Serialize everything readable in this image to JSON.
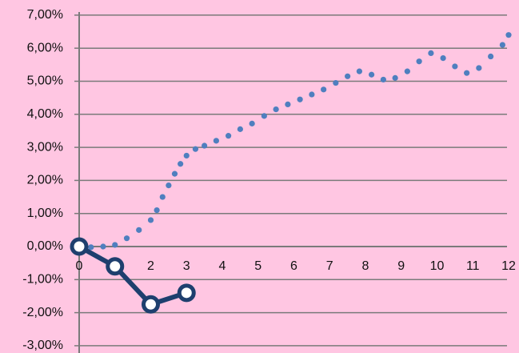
{
  "chart_data": {
    "type": "line",
    "x_ticks": [
      "0",
      "1",
      "2",
      "3",
      "4",
      "5",
      "6",
      "7",
      "8",
      "9",
      "10",
      "11",
      "12"
    ],
    "y_ticks": [
      "7,00%",
      "6,00%",
      "5,00%",
      "4,00%",
      "3,00%",
      "2,00%",
      "1,00%",
      "0,00%",
      "-1,00%",
      "-2,00%",
      "-3,00%"
    ],
    "xlim": [
      0,
      12
    ],
    "ylim": [
      -3,
      7
    ],
    "grid": "horizontal",
    "legend": "none",
    "series": [
      {
        "style": "dotted",
        "color": "#4f7fbf",
        "x": [
          0,
          0.33,
          0.67,
          1,
          1.33,
          1.67,
          2,
          2.17,
          2.33,
          2.5,
          2.67,
          2.83,
          3,
          3.25,
          3.5,
          3.83,
          4.17,
          4.5,
          4.83,
          5.17,
          5.5,
          5.83,
          6.17,
          6.5,
          6.83,
          7.17,
          7.5,
          7.83,
          8.17,
          8.5,
          8.83,
          9.17,
          9.5,
          9.83,
          10.17,
          10.5,
          10.83,
          11.17,
          11.5,
          11.83,
          12
        ],
        "y": [
          0.0,
          -0.02,
          0.0,
          0.05,
          0.25,
          0.5,
          0.8,
          1.1,
          1.5,
          1.85,
          2.2,
          2.5,
          2.75,
          2.95,
          3.05,
          3.2,
          3.35,
          3.55,
          3.72,
          3.95,
          4.15,
          4.3,
          4.45,
          4.6,
          4.75,
          4.95,
          5.15,
          5.3,
          5.2,
          5.05,
          5.1,
          5.3,
          5.6,
          5.85,
          5.7,
          5.45,
          5.25,
          5.4,
          5.75,
          6.1,
          6.4
        ]
      },
      {
        "style": "solid-with-markers",
        "color": "#1e3f6e",
        "x": [
          0,
          1,
          2,
          3
        ],
        "y": [
          0.0,
          -0.6,
          -1.75,
          -1.4
        ]
      }
    ]
  }
}
